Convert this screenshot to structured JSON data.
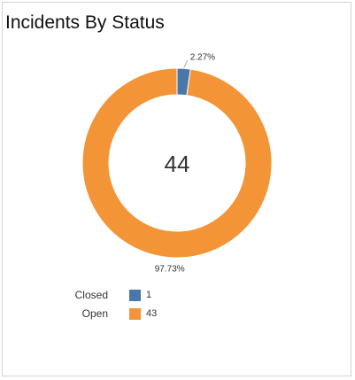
{
  "title": "Incidents By Status",
  "chart_data": {
    "type": "pie",
    "subtype": "donut",
    "center_label": "44",
    "slices": [
      {
        "label": "Closed",
        "value": 1,
        "percent_label": "2.27%",
        "color": "#4a77a9"
      },
      {
        "label": "Open",
        "value": 43,
        "percent_label": "97.73%",
        "color": "#f39436"
      }
    ],
    "legend_position": "bottom-left"
  }
}
